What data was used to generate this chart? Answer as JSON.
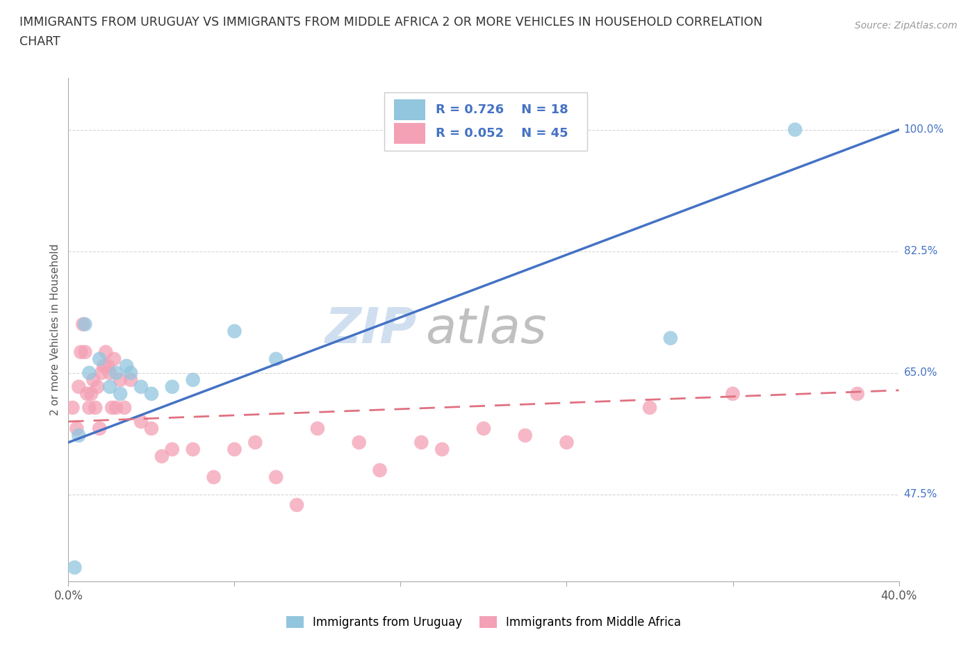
{
  "title_line1": "IMMIGRANTS FROM URUGUAY VS IMMIGRANTS FROM MIDDLE AFRICA 2 OR MORE VEHICLES IN HOUSEHOLD CORRELATION",
  "title_line2": "CHART",
  "source": "Source: ZipAtlas.com",
  "ylabel": "2 or more Vehicles in Household",
  "xlim": [
    0.0,
    40.0
  ],
  "ylim": [
    35.0,
    107.5
  ],
  "x_ticks": [
    0.0,
    8.0,
    16.0,
    24.0,
    32.0,
    40.0
  ],
  "x_tick_labels": [
    "0.0%",
    "",
    "",
    "",
    "",
    "40.0%"
  ],
  "y_tick_labels_right": [
    "47.5%",
    "65.0%",
    "82.5%",
    "100.0%"
  ],
  "y_tick_values_right": [
    47.5,
    65.0,
    82.5,
    100.0
  ],
  "color_uruguay": "#92c5de",
  "color_middle_africa": "#f4a0b5",
  "trendline_color_uruguay": "#4472c4",
  "trendline_color_middle_africa": "#e07080",
  "watermark_zip": "ZIP",
  "watermark_atlas": "atlas",
  "uruguay_x": [
    0.3,
    0.5,
    0.8,
    1.0,
    1.5,
    2.0,
    2.3,
    2.5,
    2.8,
    3.0,
    3.5,
    4.0,
    5.0,
    6.0,
    8.0,
    10.0,
    29.0,
    35.0
  ],
  "uruguay_y": [
    37.0,
    56.0,
    72.0,
    65.0,
    67.0,
    63.0,
    65.0,
    62.0,
    66.0,
    65.0,
    63.0,
    62.0,
    63.0,
    64.0,
    71.0,
    67.0,
    70.0,
    100.0
  ],
  "middle_africa_x": [
    0.2,
    0.4,
    0.5,
    0.6,
    0.7,
    0.8,
    0.9,
    1.0,
    1.1,
    1.2,
    1.3,
    1.4,
    1.5,
    1.6,
    1.7,
    1.8,
    1.9,
    2.0,
    2.1,
    2.2,
    2.3,
    2.5,
    2.7,
    3.0,
    3.5,
    4.0,
    4.5,
    5.0,
    6.0,
    7.0,
    8.0,
    9.0,
    10.0,
    11.0,
    12.0,
    14.0,
    15.0,
    17.0,
    18.0,
    20.0,
    22.0,
    24.0,
    28.0,
    32.0,
    38.0
  ],
  "middle_africa_y": [
    60.0,
    57.0,
    63.0,
    68.0,
    72.0,
    68.0,
    62.0,
    60.0,
    62.0,
    64.0,
    60.0,
    63.0,
    57.0,
    65.0,
    66.0,
    68.0,
    66.0,
    65.0,
    60.0,
    67.0,
    60.0,
    64.0,
    60.0,
    64.0,
    58.0,
    57.0,
    53.0,
    54.0,
    54.0,
    50.0,
    54.0,
    55.0,
    50.0,
    46.0,
    57.0,
    55.0,
    51.0,
    55.0,
    54.0,
    57.0,
    56.0,
    55.0,
    60.0,
    62.0,
    62.0
  ],
  "legend_label_uruguay": "Immigrants from Uruguay",
  "legend_label_middle_africa": "Immigrants from Middle Africa",
  "bg_color": "#ffffff",
  "grid_color": "#cccccc",
  "trendline_uru_x0": 0.0,
  "trendline_uru_y0": 55.0,
  "trendline_uru_x1": 40.0,
  "trendline_uru_y1": 100.0,
  "trendline_mid_x0": 0.0,
  "trendline_mid_y0": 58.0,
  "trendline_mid_x1": 40.0,
  "trendline_mid_y1": 62.5
}
